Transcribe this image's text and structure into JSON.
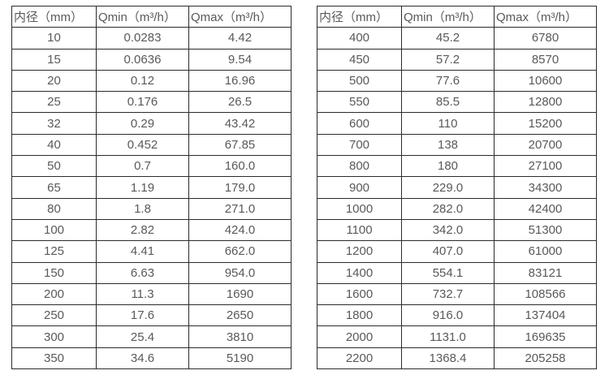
{
  "colors": {
    "background": "#ffffff",
    "text": "#595959",
    "border": "#2b2b2b"
  },
  "tables": [
    {
      "name": "flow-table-small-diameters",
      "headers": [
        "内径（mm）",
        "Qmin（m³/h）",
        "Qmax（m³/h）"
      ],
      "rows": [
        [
          "10",
          "0.0283",
          "4.42"
        ],
        [
          "15",
          "0.0636",
          "9.54"
        ],
        [
          "20",
          "0.12",
          "16.96"
        ],
        [
          "25",
          "0.176",
          "26.5"
        ],
        [
          "32",
          "0.29",
          "43.42"
        ],
        [
          "40",
          "0.452",
          "67.85"
        ],
        [
          "50",
          "0.7",
          "160.0"
        ],
        [
          "65",
          "1.19",
          "179.0"
        ],
        [
          "80",
          "1.8",
          "271.0"
        ],
        [
          "100",
          "2.82",
          "424.0"
        ],
        [
          "125",
          "4.41",
          "662.0"
        ],
        [
          "150",
          "6.63",
          "954.0"
        ],
        [
          "200",
          "11.3",
          "1690"
        ],
        [
          "250",
          "17.6",
          "2650"
        ],
        [
          "300",
          "25.4",
          "3810"
        ],
        [
          "350",
          "34.6",
          "5190"
        ]
      ]
    },
    {
      "name": "flow-table-large-diameters",
      "headers": [
        "内径（mm）",
        "Qmin（m³/h）",
        "Qmax（m³/h）"
      ],
      "rows": [
        [
          "400",
          "45.2",
          "6780"
        ],
        [
          "450",
          "57.2",
          "8570"
        ],
        [
          "500",
          "77.6",
          "10600"
        ],
        [
          "550",
          "85.5",
          "12800"
        ],
        [
          "600",
          "110",
          "15200"
        ],
        [
          "700",
          "138",
          "20700"
        ],
        [
          "800",
          "180",
          "27100"
        ],
        [
          "900",
          "229.0",
          "34300"
        ],
        [
          "1000",
          "282.0",
          "42400"
        ],
        [
          "1100",
          "342.0",
          "51300"
        ],
        [
          "1200",
          "407.0",
          "61000"
        ],
        [
          "1400",
          "554.1",
          "83121"
        ],
        [
          "1600",
          "732.7",
          "108566"
        ],
        [
          "1800",
          "916.0",
          "137404"
        ],
        [
          "2000",
          "1131.0",
          "169635"
        ],
        [
          "2200",
          "1368.4",
          "205258"
        ]
      ]
    }
  ]
}
